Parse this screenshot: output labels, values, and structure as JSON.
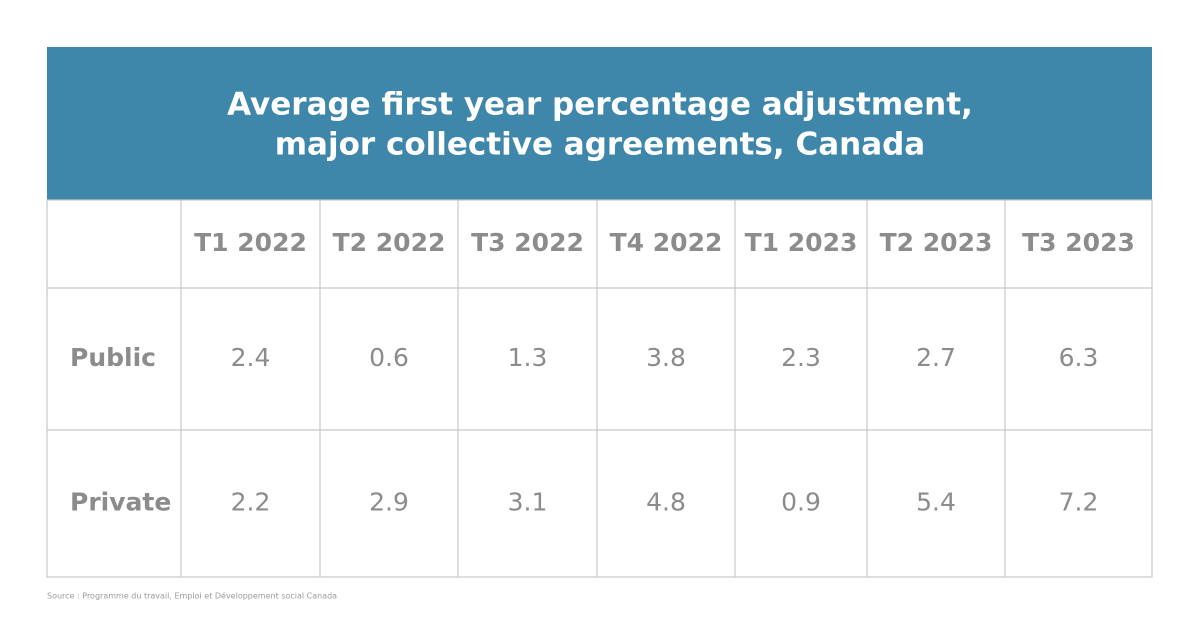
{
  "header": {
    "title_lines": [
      "Average first year percentage adjustment,",
      "major collective agreements, Canada"
    ]
  },
  "table": {
    "columns": [
      "T1 2022",
      "T2 2022",
      "T3 2022",
      "T4 2022",
      "T1 2023",
      "T2 2023",
      "T3 2023"
    ],
    "rows": [
      {
        "label": "Public",
        "values": [
          "2.4",
          "0.6",
          "1.3",
          "3.8",
          "2.3",
          "2.7",
          "6.3"
        ]
      },
      {
        "label": "Private",
        "values": [
          "2.2",
          "2.9",
          "3.1",
          "4.8",
          "0.9",
          "5.4",
          "7.2"
        ]
      }
    ]
  },
  "source": "Source : Programme du travail, Emploi et Développement social Canada"
}
